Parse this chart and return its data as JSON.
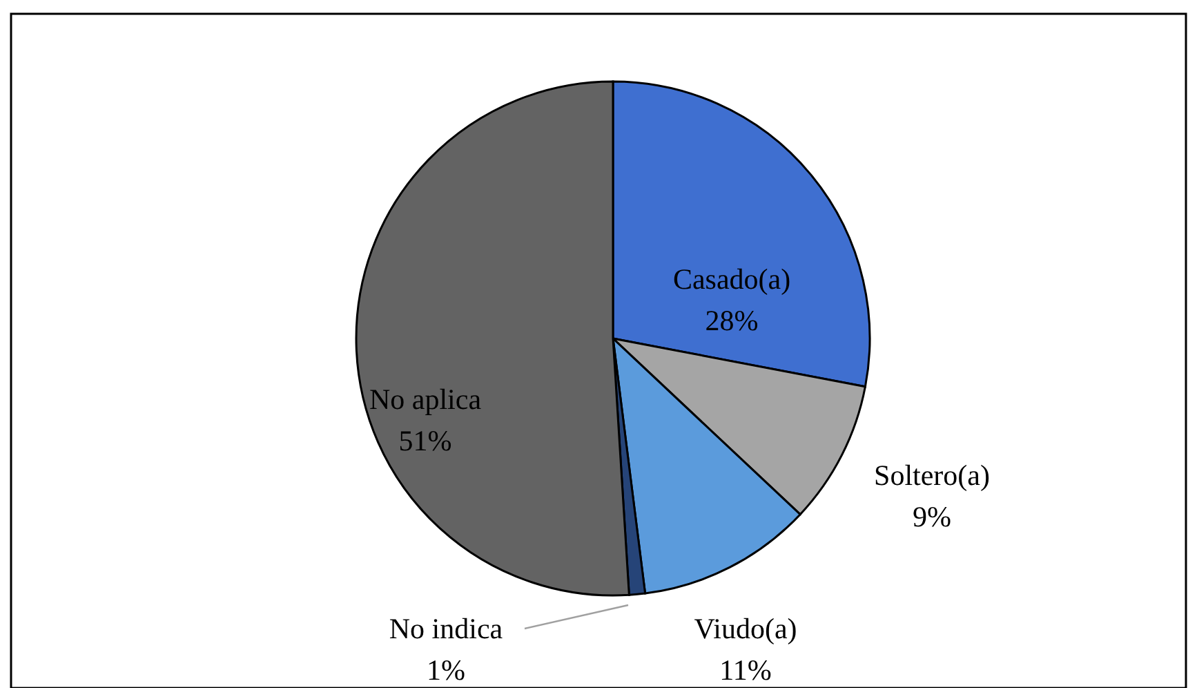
{
  "chart_data": {
    "type": "pie",
    "categories": [
      "Casado(a)",
      "Soltero(a)",
      "Viudo(a)",
      "No indica",
      "No aplica"
    ],
    "values": [
      28,
      9,
      11,
      1,
      51
    ],
    "value_labels": [
      "28%",
      "9%",
      "11%",
      "1%",
      "51%"
    ],
    "colors": [
      "#3f6fd0",
      "#a5a5a5",
      "#5b9bdc",
      "#264478",
      "#636363"
    ]
  }
}
